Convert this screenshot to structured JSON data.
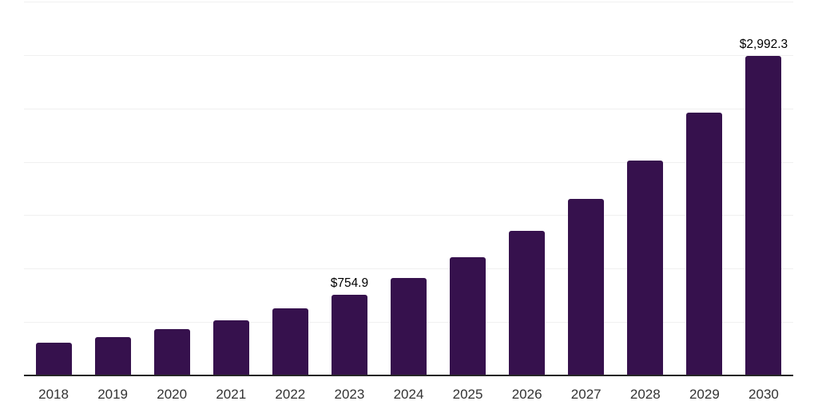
{
  "chart_style": {
    "background_color": "#ffffff",
    "bar_color": "#36114d",
    "axis_line_color": "#262626",
    "gridline_color": "#f0f0f0",
    "tick_label_color": "#333333",
    "data_label_color": "#000000"
  },
  "chart_data": {
    "type": "bar",
    "title": "",
    "xlabel": "",
    "ylabel": "",
    "categories": [
      "2018",
      "2019",
      "2020",
      "2021",
      "2022",
      "2023",
      "2024",
      "2025",
      "2026",
      "2027",
      "2028",
      "2029",
      "2030"
    ],
    "values": [
      310,
      360,
      435,
      515,
      630,
      754.9,
      915,
      1110,
      1350,
      1655,
      2015,
      2460,
      2992.3
    ],
    "bar_labels": [
      "",
      "",
      "",
      "",
      "",
      "$754.9",
      "",
      "",
      "",
      "",
      "",
      "",
      "$2,992.3"
    ],
    "ylim": [
      0,
      3500
    ],
    "gridlines": [
      500,
      1000,
      1500,
      2000,
      2500,
      3000,
      3500
    ],
    "grid": "horizontal-only",
    "y_axis_labels_visible": false,
    "legend": "none"
  }
}
